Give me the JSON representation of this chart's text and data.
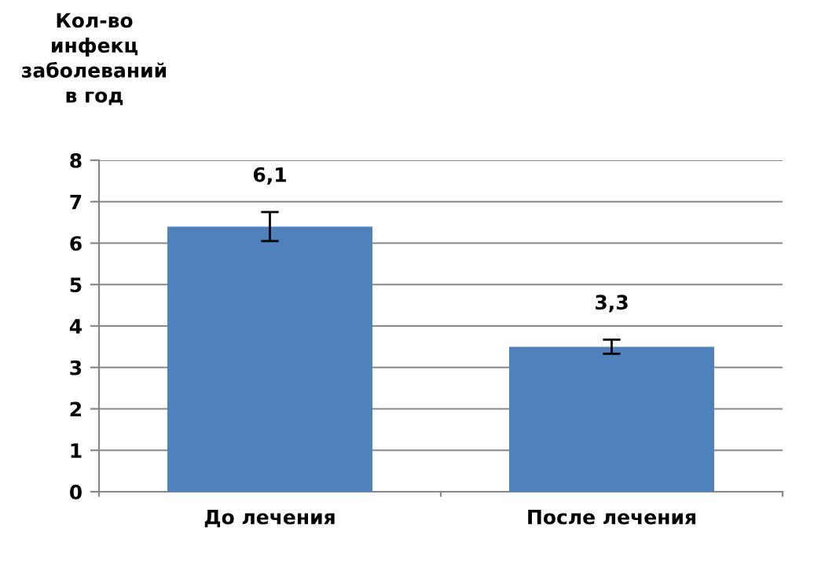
{
  "chart_data": {
    "type": "bar",
    "ylabel": "Кол-во\nинфекц\nзаболеваний\nв год",
    "categories": [
      "До лечения",
      "После лечения"
    ],
    "values": [
      6.4,
      3.5
    ],
    "errors": [
      0.35,
      0.17
    ],
    "annotations": [
      "6,1",
      "3,3"
    ],
    "color": "#4f81bd",
    "ylim": [
      0,
      8
    ],
    "yticks": [
      0,
      1,
      2,
      3,
      4,
      5,
      6,
      7,
      8
    ],
    "grid": "y",
    "legend": false
  }
}
